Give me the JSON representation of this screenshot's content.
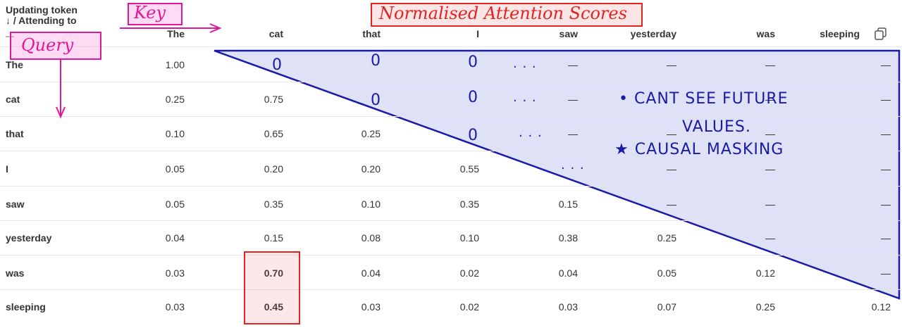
{
  "table": {
    "corner_line1": "Updating token",
    "corner_line2": "↓ / Attending to",
    "corner_dash": "—",
    "columns": [
      "The",
      "cat",
      "that",
      "I",
      "saw",
      "yesterday",
      "was",
      "sleeping"
    ],
    "rows": [
      {
        "label": "The",
        "values": [
          "1.00",
          "",
          "",
          "",
          "—",
          "—",
          "—",
          "—"
        ]
      },
      {
        "label": "cat",
        "values": [
          "0.25",
          "0.75",
          "",
          "",
          "—",
          "",
          "—",
          "—"
        ]
      },
      {
        "label": "that",
        "values": [
          "0.10",
          "0.65",
          "0.25",
          "",
          "—",
          "—",
          "—",
          "—"
        ]
      },
      {
        "label": "I",
        "values": [
          "0.05",
          "0.20",
          "0.20",
          "0.55",
          "",
          "—",
          "—",
          "—"
        ]
      },
      {
        "label": "saw",
        "values": [
          "0.05",
          "0.35",
          "0.10",
          "0.35",
          "0.15",
          "—",
          "—",
          "—"
        ]
      },
      {
        "label": "yesterday",
        "values": [
          "0.04",
          "0.15",
          "0.08",
          "0.10",
          "0.38",
          "0.25",
          "—",
          "—"
        ]
      },
      {
        "label": "was",
        "values": [
          "0.03",
          "0.70",
          "0.04",
          "0.02",
          "0.04",
          "0.05",
          "0.12",
          "—"
        ]
      },
      {
        "label": "sleeping",
        "values": [
          "0.03",
          "0.45",
          "0.03",
          "0.02",
          "0.03",
          "0.07",
          "0.25",
          "0.12"
        ]
      }
    ]
  },
  "annotations": {
    "key_label": "Key",
    "query_label": "Query",
    "title_label": "Normalised Attention Scores",
    "zero_mark": "0",
    "ellipsis_mark": ". . .",
    "note_line1": "• CANT SEE FUTURE",
    "note_line2": "VALUES.",
    "note_line3": "★ CAUSAL MASKING",
    "colors": {
      "pink": "#e0199a",
      "red": "#e02424",
      "blue": "#1a1aa8",
      "mask_fill": "#dfe1f7"
    }
  },
  "icons": {
    "copy": "copy-icon"
  }
}
